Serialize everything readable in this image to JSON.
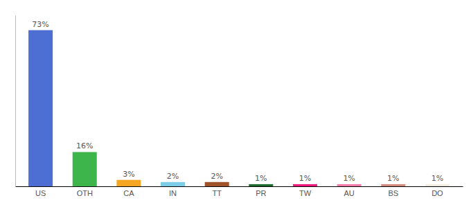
{
  "chart_data": {
    "type": "bar",
    "categories": [
      "US",
      "OTH",
      "CA",
      "IN",
      "TT",
      "PR",
      "TW",
      "AU",
      "BS",
      "DO"
    ],
    "values": [
      73,
      16,
      3,
      2,
      2,
      1,
      1,
      1,
      1,
      1
    ],
    "value_labels": [
      "73%",
      "16%",
      "3%",
      "2%",
      "2%",
      "1%",
      "1%",
      "1%",
      "1%",
      "1%"
    ],
    "data_labels": true,
    "colors": [
      "#4d6fd4",
      "#3db54a",
      "#f5a623",
      "#7ecde8",
      "#a05228",
      "#1e6b2e",
      "#f0187a",
      "#f47aaa",
      "#d4897a",
      "#f0ede0"
    ],
    "ylim": [
      0,
      80
    ],
    "tick_labels": "x"
  }
}
